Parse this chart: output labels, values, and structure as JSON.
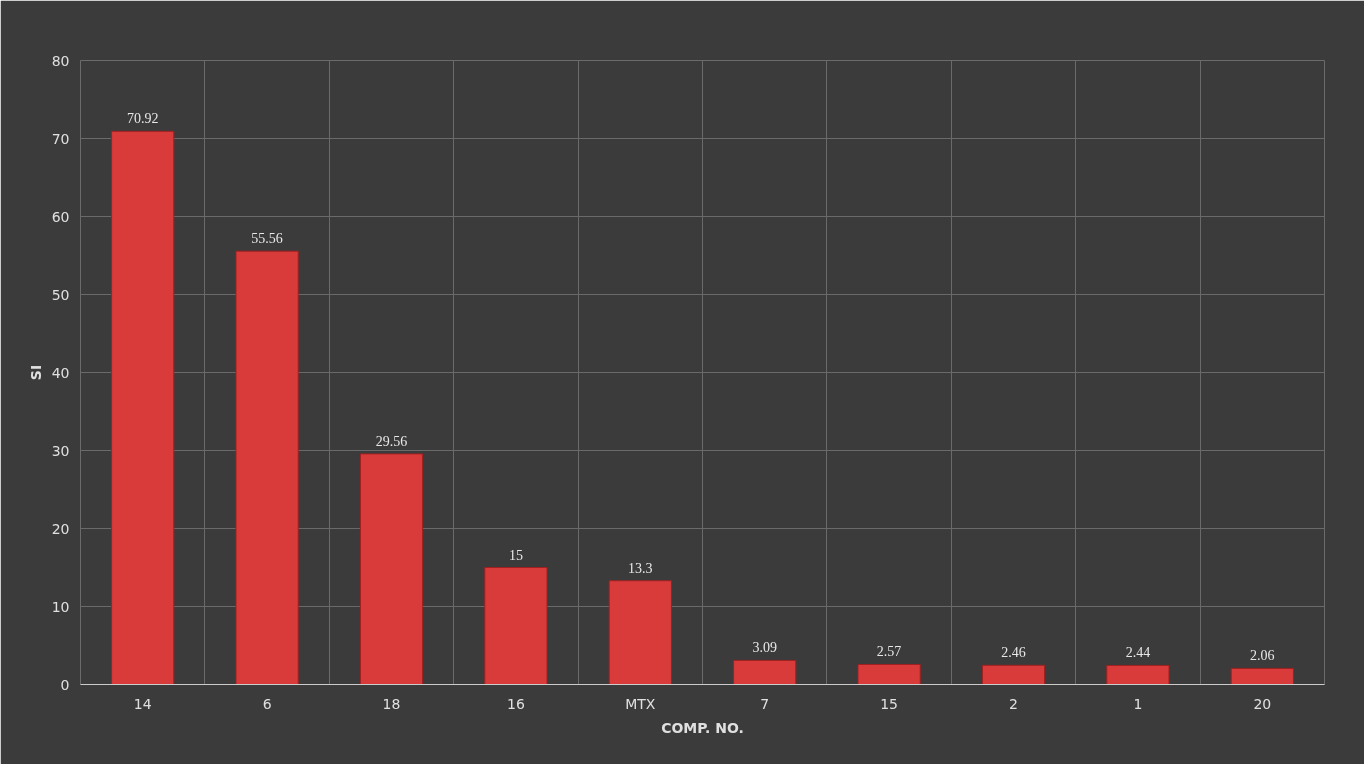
{
  "chart_data": {
    "type": "bar",
    "xlabel": "COMP. NO.",
    "ylabel": "SI",
    "categories": [
      "14",
      "6",
      "18",
      "16",
      "MTX",
      "7",
      "15",
      "2",
      "1",
      "20"
    ],
    "values": [
      70.92,
      55.56,
      29.56,
      15,
      13.3,
      3.09,
      2.57,
      2.46,
      2.44,
      2.06
    ],
    "color": "#d93b3b",
    "ylim": [
      0,
      80
    ],
    "yticks": [
      0,
      10,
      20,
      30,
      40,
      50,
      60,
      70,
      80
    ],
    "grid": true,
    "data_labels": true
  }
}
